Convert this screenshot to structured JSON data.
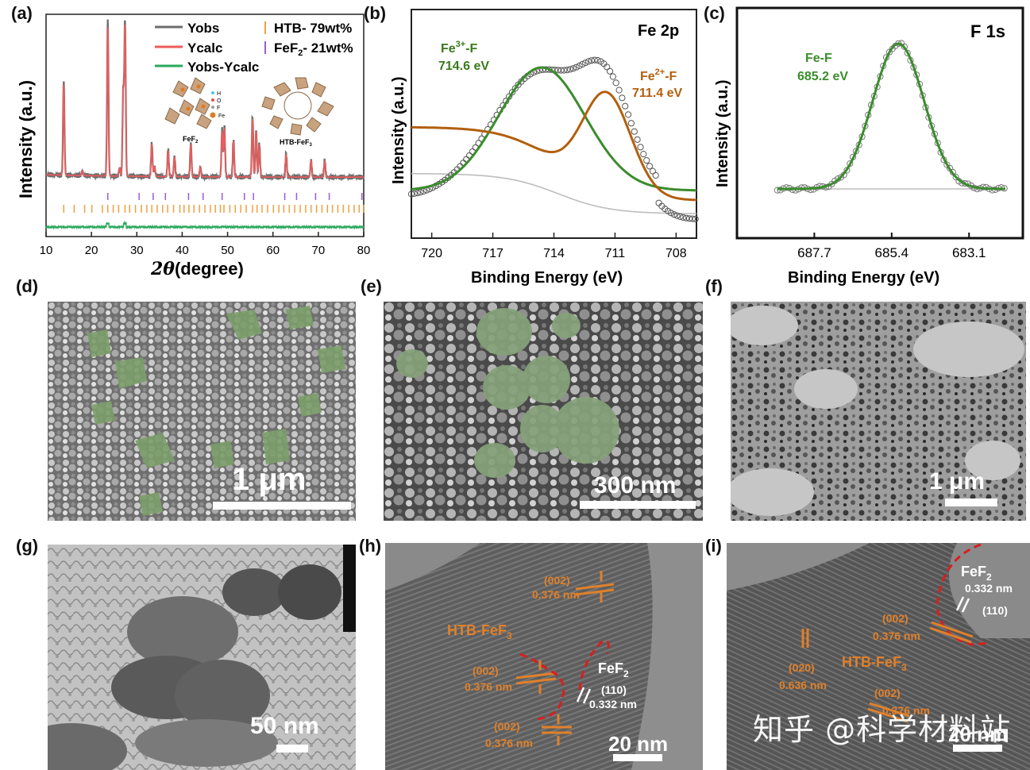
{
  "panels": {
    "a": {
      "label": "(a)",
      "ylabel": "Intensity (a.u.)",
      "xlabel_sym": "2θ",
      "xlabel_unit": "(degree)",
      "xticks": [
        "10",
        "20",
        "30",
        "40",
        "50",
        "60",
        "70",
        "80"
      ],
      "legend": {
        "yobs": "Yobs",
        "ycalc": "Ycalc",
        "diff": "Yobs-Ycalc",
        "htb": "HTB- 79wt%",
        "fef2": "FeF",
        "fef2_sub": "2",
        "fef2_rest": "- 21wt%"
      },
      "inset_left": "FeF",
      "inset_left_sub": "2",
      "inset_right": "HTB-FeF",
      "inset_right_sub": "3",
      "atoms": [
        "H",
        "O",
        "F",
        "Fe"
      ],
      "colors": {
        "yobs": "#6e6e6e",
        "ycalc": "#f05b5b",
        "diff": "#2aa85c",
        "htb": "#f0a040",
        "fef2": "#9b5bd6"
      }
    },
    "b": {
      "label": "(b)",
      "title": "Fe 2p",
      "ylabel": "Intensity (a.u.)",
      "xlabel": "Binding Energy (eV)",
      "xticks": [
        "720",
        "717",
        "714",
        "711",
        "708"
      ],
      "peak1_name": "Fe",
      "peak1_sup": "3+",
      "peak1_suffix": "-F",
      "peak1_val": "714.6 eV",
      "peak2_name": "Fe",
      "peak2_sup": "2+",
      "peak2_suffix": "-F",
      "peak2_val": "711.4 eV",
      "colors": {
        "fe3": "#3a8c2c",
        "fe2": "#b35f0e"
      }
    },
    "c": {
      "label": "(c)",
      "title": "F 1s",
      "ylabel": "Intensity (a.u.)",
      "xlabel": "Binding Energy (eV)",
      "xticks": [
        "687.7",
        "685.4",
        "683.1"
      ],
      "peak_name": "Fe-F",
      "peak_val": "685.2 eV",
      "colors": {
        "fit": "#3a8c2c"
      }
    },
    "d": {
      "label": "(d)",
      "scale": "1 μm"
    },
    "e": {
      "label": "(e)",
      "scale": "300 nm"
    },
    "f": {
      "label": "(f)",
      "scale": "1 μm"
    },
    "g": {
      "label": "(g)",
      "scale": "50 nm"
    },
    "h": {
      "label": "(h)",
      "scale": "20 nm",
      "ann1_plane": "(002)",
      "ann1_d": "0.376 nm",
      "htb": "HTB-FeF",
      "htb_sub": "3",
      "ann2_plane": "(002)",
      "ann2_d": "0.376 nm",
      "fef2": "FeF",
      "fef2_sub": "2",
      "fef2_plane": "(110)",
      "fef2_d": "0.332 nm",
      "ann3_plane": "(002)",
      "ann3_d": "0.376 nm"
    },
    "i": {
      "label": "(i)",
      "scale": "20 nm",
      "fef2": "FeF",
      "fef2_sub": "2",
      "fef2_d": "0.332 nm",
      "fef2_plane": "(110)",
      "ann1_plane": "(002)",
      "ann1_d": "0.376 nm",
      "ann2_plane": "(020)",
      "ann2_d": "0.636 nm",
      "htb": "HTB-FeF",
      "htb_sub": "3",
      "ann3_plane": "(002)",
      "ann3_d": "0.376 nm"
    }
  },
  "watermark": "知乎 @科学材料站",
  "chart_data": [
    {
      "type": "line",
      "panel": "a",
      "xlabel": "2θ (degree)",
      "ylabel": "Intensity (a.u.)",
      "xlim": [
        10,
        80
      ],
      "series": [
        {
          "name": "Yobs",
          "x": [
            10,
            13.5,
            13.9,
            14.3,
            18,
            20,
            22,
            23.2,
            23.6,
            24.1,
            26.5,
            27.0,
            27.4,
            27.8,
            28.3,
            30,
            32.8,
            33.3,
            33.9,
            35,
            36.9,
            38.3,
            39,
            40,
            41.9,
            44,
            46,
            48.8,
            49.3,
            50,
            51.3,
            52,
            54,
            55.5,
            56.3,
            57,
            58.5,
            60,
            62.9,
            63.5,
            65,
            67,
            68.4,
            70,
            71.4,
            72.2,
            74,
            76,
            78,
            80
          ],
          "y": [
            0.06,
            0.06,
            0.62,
            0.06,
            0.08,
            0.08,
            0.08,
            0.2,
            1.0,
            0.1,
            0.1,
            0.62,
            1.0,
            0.55,
            0.12,
            0.1,
            0.3,
            0.22,
            0.12,
            0.12,
            0.26,
            0.22,
            0.13,
            0.12,
            0.3,
            0.14,
            0.12,
            0.38,
            0.42,
            0.14,
            0.33,
            0.14,
            0.14,
            0.45,
            0.4,
            0.32,
            0.12,
            0.1,
            0.24,
            0.1,
            0.12,
            0.1,
            0.2,
            0.1,
            0.2,
            0.12,
            0.1,
            0.1,
            0.08,
            0.08
          ]
        },
        {
          "name": "Ycalc",
          "x": [
            10,
            13.5,
            13.9,
            14.3,
            18,
            20,
            22,
            23.2,
            23.6,
            24.1,
            26.5,
            27.0,
            27.4,
            27.8,
            28.3,
            30,
            32.8,
            33.3,
            33.9,
            35,
            36.9,
            38.3,
            39,
            40,
            41.9,
            44,
            46,
            48.8,
            49.3,
            50,
            51.3,
            52,
            54,
            55.5,
            56.3,
            57,
            58.5,
            60,
            62.9,
            63.5,
            65,
            67,
            68.4,
            70,
            71.4,
            72.2,
            74,
            76,
            78,
            80
          ],
          "y": [
            0.05,
            0.05,
            0.6,
            0.05,
            0.07,
            0.07,
            0.07,
            0.18,
            0.97,
            0.09,
            0.09,
            0.6,
            0.97,
            0.52,
            0.1,
            0.08,
            0.28,
            0.2,
            0.1,
            0.1,
            0.24,
            0.2,
            0.11,
            0.1,
            0.28,
            0.12,
            0.1,
            0.36,
            0.4,
            0.12,
            0.31,
            0.12,
            0.12,
            0.43,
            0.38,
            0.3,
            0.1,
            0.08,
            0.22,
            0.08,
            0.1,
            0.08,
            0.18,
            0.08,
            0.18,
            0.1,
            0.08,
            0.08,
            0.07,
            0.07
          ]
        },
        {
          "name": "Yobs-Ycalc",
          "x": [
            10,
            20,
            23.6,
            27.4,
            30,
            40,
            50,
            60,
            70,
            80
          ],
          "y": [
            0,
            0,
            0.04,
            0.03,
            0,
            0,
            0,
            0,
            0,
            0
          ]
        }
      ],
      "reflections": {
        "HTB": [
          13.9,
          16.2,
          18.5,
          20.1,
          22.4,
          23.6,
          24.8,
          26.0,
          27.4,
          28.4,
          29.7,
          31.0,
          32.2,
          33.3,
          34.5,
          35.7,
          36.8,
          38.1,
          39.5,
          40.4,
          41.5,
          42.6,
          43.8,
          45.0,
          46.2,
          47.3,
          48.4,
          49.2,
          50.5,
          51.7,
          52.9,
          54.1,
          55.5,
          56.5,
          57.6,
          58.8,
          60.1,
          61.3,
          62.4,
          63.6,
          64.8,
          66.0,
          67.2,
          68.4,
          69.6,
          70.8,
          72.0,
          73.1,
          74.3,
          75.5,
          76.7,
          77.9,
          79.0,
          80.0
        ],
        "FeF2": [
          23.6,
          30.5,
          33.6,
          36.3,
          41.4,
          44.6,
          48.8,
          53.7,
          55.7,
          62.6,
          65.2,
          69.4,
          72.4,
          79.6
        ]
      }
    },
    {
      "type": "line",
      "panel": "b",
      "title": "Fe 2p",
      "xlabel": "Binding Energy (eV)",
      "ylabel": "Intensity (a.u.)",
      "xlim": [
        721,
        707
      ],
      "xticks": [
        720,
        717,
        714,
        711,
        708
      ],
      "series": [
        {
          "name": "Fe³⁺-F",
          "center": 714.6,
          "fwhm": 5.0,
          "height": 0.62
        },
        {
          "name": "Fe²⁺-F",
          "center": 711.4,
          "fwhm": 2.8,
          "height": 0.45
        }
      ]
    },
    {
      "type": "line",
      "panel": "c",
      "title": "F 1s",
      "xlabel": "Binding Energy (eV)",
      "ylabel": "Intensity (a.u.)",
      "xlim": [
        690,
        681.5
      ],
      "xticks": [
        687.7,
        685.4,
        683.1
      ],
      "series": [
        {
          "name": "Fe-F",
          "center": 685.2,
          "fwhm": 1.8,
          "height": 1.0
        }
      ]
    }
  ]
}
